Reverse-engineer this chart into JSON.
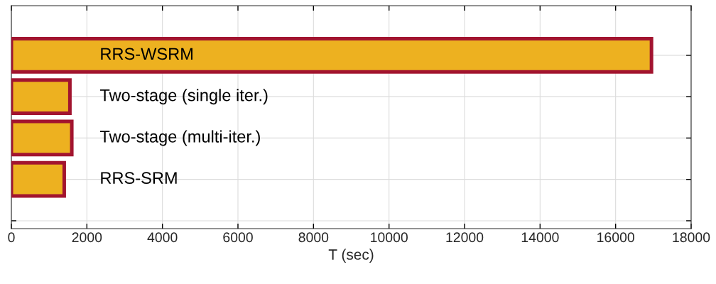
{
  "chart_data": {
    "type": "bar",
    "orientation": "horizontal",
    "xlabel": "T (sec)",
    "categories": [
      "RRS-WSRM",
      "Two-stage (single iter.)",
      "Two-stage (multi-iter.)",
      "RRS-SRM",
      null
    ],
    "values": [
      16950,
      1550,
      1600,
      1400,
      null
    ],
    "color": "#edb120",
    "xlim": [
      0,
      18000
    ],
    "xticks": [
      0,
      2000,
      4000,
      6000,
      8000,
      10000,
      12000,
      14000,
      16000,
      18000
    ],
    "grid": true,
    "tick_labels": "x"
  }
}
